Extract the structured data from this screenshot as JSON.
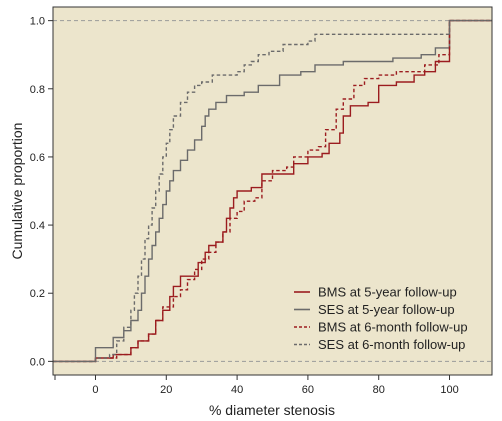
{
  "chart_data": {
    "type": "line",
    "step": true,
    "xlabel": "% diameter stenosis",
    "ylabel": "Cumulative proportion",
    "xlim": [
      -12,
      112
    ],
    "ylim": [
      -0.04,
      1.04
    ],
    "x_ticks": [
      0,
      20,
      40,
      60,
      80,
      100
    ],
    "y_ticks": [
      0.0,
      0.2,
      0.4,
      0.6,
      0.8,
      1.0
    ],
    "x_tick_labels": [
      "0",
      "20",
      "40",
      "60",
      "80",
      "100"
    ],
    "y_tick_labels": [
      "0.0",
      "0.2",
      "0.4",
      "0.6",
      "0.8",
      "1.0"
    ],
    "reference_lines": [
      0.0,
      1.0
    ],
    "background_color": "#ece5cc",
    "legend_position": "bottom-right",
    "series": [
      {
        "name": "BMS at 5-year follow-up",
        "color": "#9b1c1f",
        "dash": "solid",
        "points": [
          [
            -12,
            0
          ],
          [
            0,
            0
          ],
          [
            0,
            0.01
          ],
          [
            5,
            0.02
          ],
          [
            10,
            0.04
          ],
          [
            12,
            0.06
          ],
          [
            15,
            0.08
          ],
          [
            17,
            0.12
          ],
          [
            19,
            0.15
          ],
          [
            21,
            0.19
          ],
          [
            22,
            0.22
          ],
          [
            24,
            0.25
          ],
          [
            27,
            0.25
          ],
          [
            29,
            0.29
          ],
          [
            31,
            0.32
          ],
          [
            32,
            0.34
          ],
          [
            34,
            0.35
          ],
          [
            36,
            0.38
          ],
          [
            37,
            0.42
          ],
          [
            38,
            0.45
          ],
          [
            39,
            0.48
          ],
          [
            40,
            0.5
          ],
          [
            44,
            0.51
          ],
          [
            47,
            0.55
          ],
          [
            55,
            0.55
          ],
          [
            56,
            0.58
          ],
          [
            60,
            0.6
          ],
          [
            64,
            0.61
          ],
          [
            66,
            0.64
          ],
          [
            69,
            0.67
          ],
          [
            70,
            0.72
          ],
          [
            72,
            0.75
          ],
          [
            77,
            0.76
          ],
          [
            80,
            0.81
          ],
          [
            85,
            0.82
          ],
          [
            90,
            0.84
          ],
          [
            93,
            0.85
          ],
          [
            96,
            0.88
          ],
          [
            100,
            0.88
          ],
          [
            100,
            1.0
          ],
          [
            112,
            1.0
          ]
        ]
      },
      {
        "name": "SES at 5-year follow-up",
        "color": "#6b6b6b",
        "dash": "solid",
        "points": [
          [
            -12,
            0
          ],
          [
            0,
            0
          ],
          [
            0,
            0.04
          ],
          [
            4,
            0.04
          ],
          [
            5,
            0.07
          ],
          [
            8,
            0.09
          ],
          [
            10,
            0.12
          ],
          [
            12,
            0.15
          ],
          [
            13,
            0.2
          ],
          [
            14,
            0.25
          ],
          [
            15,
            0.3
          ],
          [
            16,
            0.34
          ],
          [
            17,
            0.38
          ],
          [
            18,
            0.42
          ],
          [
            19,
            0.46
          ],
          [
            20,
            0.5
          ],
          [
            21,
            0.53
          ],
          [
            22,
            0.56
          ],
          [
            24,
            0.59
          ],
          [
            26,
            0.62
          ],
          [
            28,
            0.65
          ],
          [
            30,
            0.69
          ],
          [
            31,
            0.72
          ],
          [
            32,
            0.74
          ],
          [
            34,
            0.76
          ],
          [
            37,
            0.78
          ],
          [
            42,
            0.79
          ],
          [
            46,
            0.81
          ],
          [
            52,
            0.84
          ],
          [
            58,
            0.85
          ],
          [
            62,
            0.87
          ],
          [
            70,
            0.88
          ],
          [
            84,
            0.89
          ],
          [
            92,
            0.9
          ],
          [
            96,
            0.92
          ],
          [
            100,
            0.92
          ],
          [
            100,
            1.0
          ],
          [
            112,
            1.0
          ]
        ]
      },
      {
        "name": "BMS at 6-month follow-up",
        "color": "#9b1c1f",
        "dash": "dashed",
        "points": [
          [
            -12,
            0
          ],
          [
            0,
            0
          ],
          [
            0,
            0.01
          ],
          [
            6,
            0.02
          ],
          [
            10,
            0.04
          ],
          [
            12,
            0.06
          ],
          [
            15,
            0.08
          ],
          [
            17,
            0.12
          ],
          [
            19,
            0.16
          ],
          [
            22,
            0.19
          ],
          [
            24,
            0.21
          ],
          [
            26,
            0.24
          ],
          [
            28,
            0.27
          ],
          [
            30,
            0.3
          ],
          [
            32,
            0.32
          ],
          [
            34,
            0.35
          ],
          [
            36,
            0.38
          ],
          [
            38,
            0.42
          ],
          [
            40,
            0.44
          ],
          [
            42,
            0.47
          ],
          [
            45,
            0.48
          ],
          [
            47,
            0.53
          ],
          [
            50,
            0.56
          ],
          [
            54,
            0.57
          ],
          [
            56,
            0.6
          ],
          [
            60,
            0.62
          ],
          [
            63,
            0.63
          ],
          [
            65,
            0.68
          ],
          [
            68,
            0.74
          ],
          [
            70,
            0.77
          ],
          [
            73,
            0.81
          ],
          [
            76,
            0.83
          ],
          [
            80,
            0.84
          ],
          [
            85,
            0.85
          ],
          [
            93,
            0.87
          ],
          [
            97,
            0.9
          ],
          [
            100,
            0.9
          ],
          [
            100,
            1.0
          ],
          [
            112,
            1.0
          ]
        ]
      },
      {
        "name": "SES at 6-month follow-up",
        "color": "#6b6b6b",
        "dash": "dashed",
        "points": [
          [
            -12,
            0
          ],
          [
            0,
            0
          ],
          [
            0,
            0.01
          ],
          [
            4,
            0.02
          ],
          [
            6,
            0.06
          ],
          [
            8,
            0.1
          ],
          [
            10,
            0.15
          ],
          [
            11,
            0.2
          ],
          [
            12,
            0.25
          ],
          [
            13,
            0.3
          ],
          [
            14,
            0.36
          ],
          [
            15,
            0.4
          ],
          [
            16,
            0.45
          ],
          [
            17,
            0.5
          ],
          [
            18,
            0.55
          ],
          [
            19,
            0.6
          ],
          [
            20,
            0.64
          ],
          [
            21,
            0.68
          ],
          [
            22,
            0.72
          ],
          [
            24,
            0.76
          ],
          [
            26,
            0.79
          ],
          [
            28,
            0.81
          ],
          [
            30,
            0.82
          ],
          [
            33,
            0.84
          ],
          [
            40,
            0.85
          ],
          [
            42,
            0.87
          ],
          [
            44,
            0.88
          ],
          [
            46,
            0.9
          ],
          [
            49,
            0.91
          ],
          [
            53,
            0.93
          ],
          [
            60,
            0.94
          ],
          [
            62,
            0.96
          ],
          [
            100,
            0.96
          ],
          [
            100,
            1.0
          ],
          [
            112,
            1.0
          ]
        ]
      }
    ]
  }
}
